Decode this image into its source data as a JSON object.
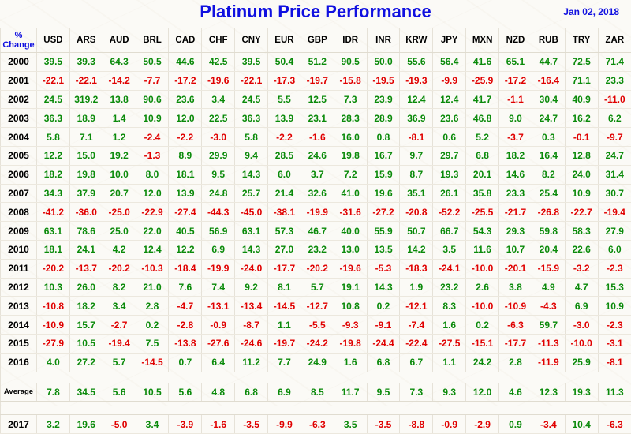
{
  "title": "Platinum Price Performance",
  "date": "Jan 02, 2018",
  "chart_data": {
    "type": "table",
    "title": "Platinum Price Performance",
    "corner_label": [
      "%",
      "Change"
    ],
    "currencies": [
      "USD",
      "ARS",
      "AUD",
      "BRL",
      "CAD",
      "CHF",
      "CNY",
      "EUR",
      "GBP",
      "IDR",
      "INR",
      "KRW",
      "JPY",
      "MXN",
      "NZD",
      "RUB",
      "TRY",
      "ZAR"
    ],
    "rows": [
      {
        "label": "2000",
        "values": [
          "39.5",
          "39.3",
          "64.3",
          "50.5",
          "44.6",
          "42.5",
          "39.5",
          "50.4",
          "51.2",
          "90.5",
          "50.0",
          "55.6",
          "56.4",
          "41.6",
          "65.1",
          "44.7",
          "72.5",
          "71.4"
        ]
      },
      {
        "label": "2001",
        "values": [
          "-22.1",
          "-22.1",
          "-14.2",
          "-7.7",
          "-17.2",
          "-19.6",
          "-22.1",
          "-17.3",
          "-19.7",
          "-15.8",
          "-19.5",
          "-19.3",
          "-9.9",
          "-25.9",
          "-17.2",
          "-16.4",
          "71.1",
          "23.3"
        ]
      },
      {
        "label": "2002",
        "values": [
          "24.5",
          "319.2",
          "13.8",
          "90.6",
          "23.6",
          "3.4",
          "24.5",
          "5.5",
          "12.5",
          "7.3",
          "23.9",
          "12.4",
          "12.4",
          "41.7",
          "-1.1",
          "30.4",
          "40.9",
          "-11.0"
        ]
      },
      {
        "label": "2003",
        "values": [
          "36.3",
          "18.9",
          "1.4",
          "10.9",
          "12.0",
          "22.5",
          "36.3",
          "13.9",
          "23.1",
          "28.3",
          "28.9",
          "36.9",
          "23.6",
          "46.8",
          "9.0",
          "24.7",
          "16.2",
          "6.2"
        ]
      },
      {
        "label": "2004",
        "values": [
          "5.8",
          "7.1",
          "1.2",
          "-2.4",
          "-2.2",
          "-3.0",
          "5.8",
          "-2.2",
          "-1.6",
          "16.0",
          "0.8",
          "-8.1",
          "0.6",
          "5.2",
          "-3.7",
          "0.3",
          "-0.1",
          "-9.7"
        ]
      },
      {
        "label": "2005",
        "values": [
          "12.2",
          "15.0",
          "19.2",
          "-1.3",
          "8.9",
          "29.9",
          "9.4",
          "28.5",
          "24.6",
          "19.8",
          "16.7",
          "9.7",
          "29.7",
          "6.8",
          "18.2",
          "16.4",
          "12.8",
          "24.7"
        ]
      },
      {
        "label": "2006",
        "values": [
          "18.2",
          "19.8",
          "10.0",
          "8.0",
          "18.1",
          "9.5",
          "14.3",
          "6.0",
          "3.7",
          "7.2",
          "15.9",
          "8.7",
          "19.3",
          "20.1",
          "14.6",
          "8.2",
          "24.0",
          "31.4"
        ]
      },
      {
        "label": "2007",
        "values": [
          "34.3",
          "37.9",
          "20.7",
          "12.0",
          "13.9",
          "24.8",
          "25.7",
          "21.4",
          "32.6",
          "41.0",
          "19.6",
          "35.1",
          "26.1",
          "35.8",
          "23.3",
          "25.4",
          "10.9",
          "30.7"
        ]
      },
      {
        "label": "2008",
        "values": [
          "-41.2",
          "-36.0",
          "-25.0",
          "-22.9",
          "-27.4",
          "-44.3",
          "-45.0",
          "-38.1",
          "-19.9",
          "-31.6",
          "-27.2",
          "-20.8",
          "-52.2",
          "-25.5",
          "-21.7",
          "-26.8",
          "-22.7",
          "-19.4"
        ]
      },
      {
        "label": "2009",
        "values": [
          "63.1",
          "78.6",
          "25.0",
          "22.0",
          "40.5",
          "56.9",
          "63.1",
          "57.3",
          "46.7",
          "40.0",
          "55.9",
          "50.7",
          "66.7",
          "54.3",
          "29.3",
          "59.8",
          "58.3",
          "27.9"
        ]
      },
      {
        "label": "2010",
        "values": [
          "18.1",
          "24.1",
          "4.2",
          "12.4",
          "12.2",
          "6.9",
          "14.3",
          "27.0",
          "23.2",
          "13.0",
          "13.5",
          "14.2",
          "3.5",
          "11.6",
          "10.7",
          "20.4",
          "22.6",
          "6.0"
        ]
      },
      {
        "label": "2011",
        "values": [
          "-20.2",
          "-13.7",
          "-20.2",
          "-10.3",
          "-18.4",
          "-19.9",
          "-24.0",
          "-17.7",
          "-20.2",
          "-19.6",
          "-5.3",
          "-18.3",
          "-24.1",
          "-10.0",
          "-20.1",
          "-15.9",
          "-3.2",
          "-2.3"
        ]
      },
      {
        "label": "2012",
        "values": [
          "10.3",
          "26.0",
          "8.2",
          "21.0",
          "7.6",
          "7.4",
          "9.2",
          "8.1",
          "5.7",
          "19.1",
          "14.3",
          "1.9",
          "23.2",
          "2.6",
          "3.8",
          "4.9",
          "4.7",
          "15.3"
        ]
      },
      {
        "label": "2013",
        "values": [
          "-10.8",
          "18.2",
          "3.4",
          "2.8",
          "-4.7",
          "-13.1",
          "-13.4",
          "-14.5",
          "-12.7",
          "10.8",
          "0.2",
          "-12.1",
          "8.3",
          "-10.0",
          "-10.9",
          "-4.3",
          "6.9",
          "10.9"
        ]
      },
      {
        "label": "2014",
        "values": [
          "-10.9",
          "15.7",
          "-2.7",
          "0.2",
          "-2.8",
          "-0.9",
          "-8.7",
          "1.1",
          "-5.5",
          "-9.3",
          "-9.1",
          "-7.4",
          "1.6",
          "0.2",
          "-6.3",
          "59.7",
          "-3.0",
          "-2.3"
        ]
      },
      {
        "label": "2015",
        "values": [
          "-27.9",
          "10.5",
          "-19.4",
          "7.5",
          "-13.8",
          "-27.6",
          "-24.6",
          "-19.7",
          "-24.2",
          "-19.8",
          "-24.4",
          "-22.4",
          "-27.5",
          "-15.1",
          "-17.7",
          "-11.3",
          "-10.0",
          "-3.1"
        ]
      },
      {
        "label": "2016",
        "values": [
          "4.0",
          "27.2",
          "5.7",
          "-14.5",
          "0.7",
          "6.4",
          "11.2",
          "7.7",
          "24.9",
          "1.6",
          "6.8",
          "6.7",
          "1.1",
          "24.2",
          "2.8",
          "-11.9",
          "25.9",
          "-8.1"
        ]
      }
    ],
    "average": {
      "label": "Average",
      "values": [
        "7.8",
        "34.5",
        "5.6",
        "10.5",
        "5.6",
        "4.8",
        "6.8",
        "6.9",
        "8.5",
        "11.7",
        "9.5",
        "7.3",
        "9.3",
        "12.0",
        "4.6",
        "12.3",
        "19.3",
        "11.3"
      ]
    },
    "current": {
      "label": "2017",
      "values": [
        "3.2",
        "19.6",
        "-5.0",
        "3.4",
        "-3.9",
        "-1.6",
        "-3.5",
        "-9.9",
        "-6.3",
        "3.5",
        "-3.5",
        "-8.8",
        "-0.9",
        "-2.9",
        "0.9",
        "-3.4",
        "10.4",
        "-6.3"
      ]
    },
    "colors": {
      "positive": "#0a8a0a",
      "negative": "#e00000",
      "title": "#1010e0"
    }
  }
}
